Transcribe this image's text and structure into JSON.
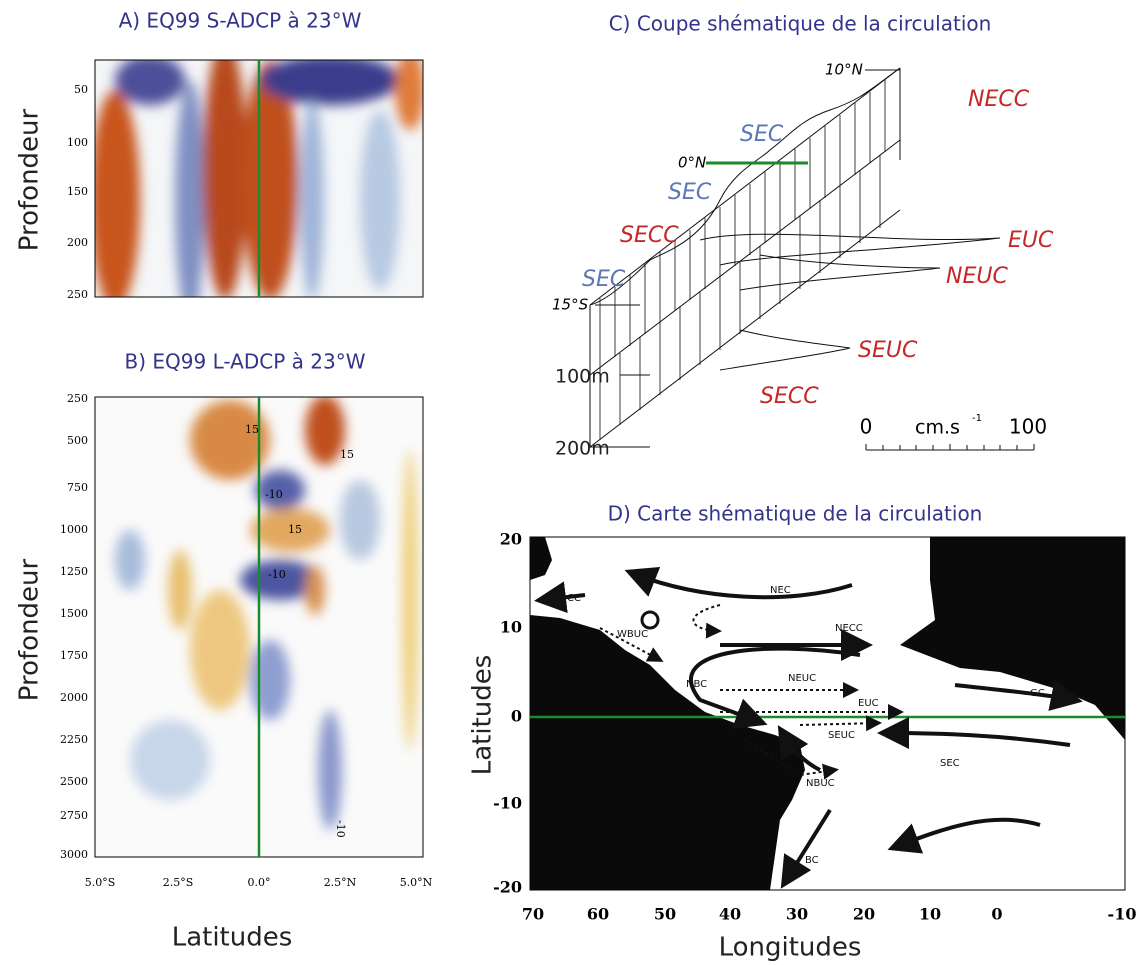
{
  "panel_a": {
    "title": "A) EQ99 S-ADCP à 23°W",
    "ylabel": "Profondeur",
    "yticks": [
      "50",
      "100",
      "150",
      "200",
      "250"
    ]
  },
  "panel_b": {
    "title": "B) EQ99 L-ADCP à 23°W",
    "ylabel": "Profondeur",
    "yticks": [
      "250",
      "500",
      "750",
      "1000",
      "1250",
      "1500",
      "1750",
      "2000",
      "2250",
      "2500",
      "2750",
      "3000"
    ],
    "xticks": [
      "5.0°S",
      "2.5°S",
      "0.0°",
      "2.5°N",
      "5.0°N"
    ],
    "xlabel": "Latitudes",
    "contour_labels": [
      "15",
      "-10",
      "15",
      "-10",
      "15",
      "-10"
    ]
  },
  "panel_c": {
    "title": "C) Coupe shématique de la circulation",
    "latitudes": [
      "10°N",
      "0°N",
      "15°S"
    ],
    "depths": [
      "100m",
      "200m"
    ],
    "currents": [
      "NECC",
      "SEC",
      "SEC",
      "SECC",
      "SEC",
      "EUC",
      "NEUC",
      "SEUC",
      "SECC"
    ],
    "scale": {
      "min": "0",
      "unit": "cm.s",
      "exponent": "-1",
      "max": "100"
    }
  },
  "panel_d": {
    "title": "D) Carte shématique de la circulation",
    "ylabel": "Latitudes",
    "xlabel": "Longitudes",
    "yticks": [
      "20",
      "10",
      "0",
      "-10",
      "-20"
    ],
    "xticks": [
      "70",
      "60",
      "50",
      "40",
      "30",
      "20",
      "10",
      "0",
      "-10"
    ],
    "currents": [
      "CC",
      "NEC",
      "WBUC",
      "NECC",
      "NBC",
      "NEUC",
      "EUC",
      "GC",
      "SEUC",
      "NBUC",
      "SEC",
      "BC"
    ]
  }
}
